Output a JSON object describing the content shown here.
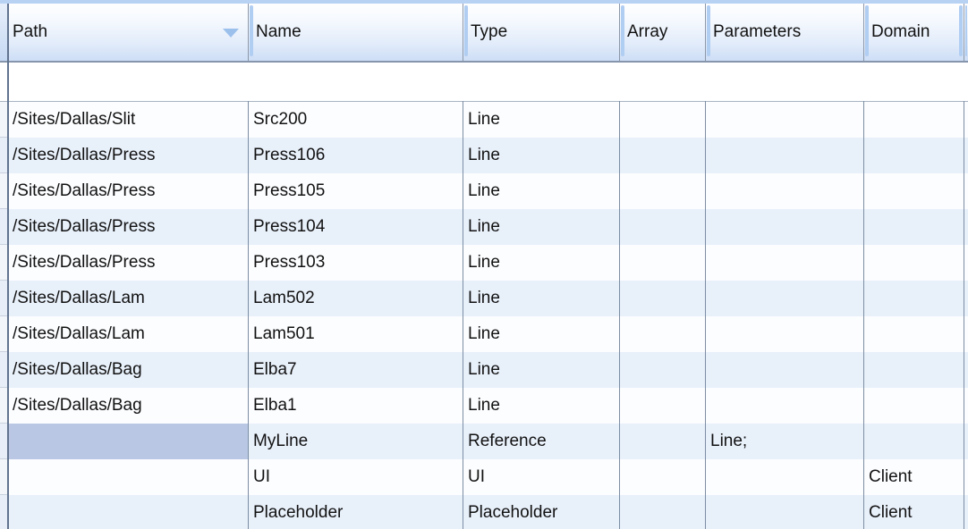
{
  "grid": {
    "columns": [
      {
        "key": "path",
        "label": "Path",
        "sort": "descending"
      },
      {
        "key": "name",
        "label": "Name",
        "sort": ""
      },
      {
        "key": "type",
        "label": "Type",
        "sort": ""
      },
      {
        "key": "array",
        "label": "Array",
        "sort": ""
      },
      {
        "key": "parameters",
        "label": "Parameters",
        "sort": ""
      },
      {
        "key": "domain",
        "label": "Domain",
        "sort": ""
      }
    ],
    "rows": [
      {
        "path": "/Sites/Dallas/Slit",
        "name": "Src200",
        "type": "Line",
        "array": "",
        "parameters": "",
        "domain": ""
      },
      {
        "path": "/Sites/Dallas/Press",
        "name": "Press106",
        "type": "Line",
        "array": "",
        "parameters": "",
        "domain": ""
      },
      {
        "path": "/Sites/Dallas/Press",
        "name": "Press105",
        "type": "Line",
        "array": "",
        "parameters": "",
        "domain": ""
      },
      {
        "path": "/Sites/Dallas/Press",
        "name": "Press104",
        "type": "Line",
        "array": "",
        "parameters": "",
        "domain": ""
      },
      {
        "path": "/Sites/Dallas/Press",
        "name": "Press103",
        "type": "Line",
        "array": "",
        "parameters": "",
        "domain": ""
      },
      {
        "path": "/Sites/Dallas/Lam",
        "name": "Lam502",
        "type": "Line",
        "array": "",
        "parameters": "",
        "domain": ""
      },
      {
        "path": "/Sites/Dallas/Lam",
        "name": "Lam501",
        "type": "Line",
        "array": "",
        "parameters": "",
        "domain": ""
      },
      {
        "path": "/Sites/Dallas/Bag",
        "name": "Elba7",
        "type": "Line",
        "array": "",
        "parameters": "",
        "domain": ""
      },
      {
        "path": "/Sites/Dallas/Bag",
        "name": "Elba1",
        "type": "Line",
        "array": "",
        "parameters": "",
        "domain": ""
      },
      {
        "path": "",
        "name": "MyLine",
        "type": "Reference",
        "array": "",
        "parameters": "Line;",
        "domain": ""
      },
      {
        "path": "",
        "name": "UI",
        "type": "UI",
        "array": "",
        "parameters": "",
        "domain": "Client"
      },
      {
        "path": "",
        "name": "Placeholder",
        "type": "Placeholder",
        "array": "",
        "parameters": "",
        "domain": "Client"
      }
    ],
    "selected_cell": {
      "row_index": 9,
      "column": "path"
    },
    "sort_icon": "sort-descending-icon"
  },
  "colors": {
    "selection": "#b9c7e4",
    "row": "#fcfdff",
    "row_alt": "#e8f0fa",
    "accent_strip": "#b8d2f4",
    "header_gradient_bottom": "#cddef6",
    "gridline": "#7d8ea4",
    "sort_arrow": "#9cc0ec"
  }
}
